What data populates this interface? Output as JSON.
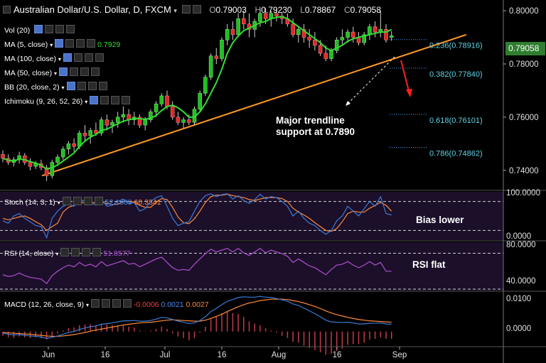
{
  "header": {
    "title": "Australian Dollar/U.S. Dollar, D, FXCM",
    "open_label": "O",
    "open": "0.79003",
    "high_label": "H",
    "high": "0.79230",
    "low_label": "L",
    "low": "0.78867",
    "close_label": "C",
    "close": "0.79058"
  },
  "indicators": [
    {
      "label": "Vol (20)",
      "value": ""
    },
    {
      "label": "MA (5, close)",
      "value": "0.7929"
    },
    {
      "label": "MA (100, close)",
      "value": ""
    },
    {
      "label": "MA (50, close)",
      "value": ""
    },
    {
      "label": "BB (20, close, 2)",
      "value": ""
    },
    {
      "label": "Ichimoku (9, 26, 52, 26)",
      "value": ""
    }
  ],
  "colors": {
    "up": "#1fbf1f",
    "down": "#e02828",
    "ma5": "#33dd33",
    "trend": "#ff9a1f",
    "fib": "#4aa8ff",
    "fib_text": "#5fd3e6",
    "stoch_k": "#3a7bd5",
    "stoch_d": "#ff8a3a",
    "rsi": "#b04fd0",
    "macd": "#3a7bd5",
    "signal": "#ff8a3a",
    "hist": "#c23a4a",
    "panel": "#1c0f2a"
  },
  "chart_data": {
    "type": "candlestick",
    "symbol": "AUD/USD",
    "timeframe": "D",
    "x_ticks": [
      "Jun",
      "16",
      "Jul",
      "16",
      "Aug",
      "16",
      "Sep"
    ],
    "ylim": [
      0.733,
      0.8035
    ],
    "y_ticks": [
      "0.80000",
      "0.78000",
      "0.76000",
      "0.74000"
    ],
    "last_price": "0.79058",
    "ohlc": [
      [
        0.746,
        0.7475,
        0.743,
        0.7445
      ],
      [
        0.7445,
        0.746,
        0.742,
        0.743
      ],
      [
        0.743,
        0.745,
        0.7415,
        0.744
      ],
      [
        0.744,
        0.747,
        0.7425,
        0.7455
      ],
      [
        0.7455,
        0.7465,
        0.742,
        0.743
      ],
      [
        0.743,
        0.7445,
        0.74,
        0.7415
      ],
      [
        0.7415,
        0.7435,
        0.7405,
        0.7425
      ],
      [
        0.7425,
        0.744,
        0.74,
        0.741
      ],
      [
        0.741,
        0.742,
        0.736,
        0.738
      ],
      [
        0.738,
        0.744,
        0.737,
        0.743
      ],
      [
        0.743,
        0.746,
        0.742,
        0.745
      ],
      [
        0.745,
        0.749,
        0.744,
        0.748
      ],
      [
        0.748,
        0.751,
        0.746,
        0.75
      ],
      [
        0.75,
        0.752,
        0.747,
        0.749
      ],
      [
        0.749,
        0.755,
        0.748,
        0.754
      ],
      [
        0.754,
        0.757,
        0.751,
        0.753
      ],
      [
        0.753,
        0.756,
        0.75,
        0.755
      ],
      [
        0.755,
        0.758,
        0.753,
        0.754
      ],
      [
        0.754,
        0.76,
        0.753,
        0.759
      ],
      [
        0.759,
        0.761,
        0.755,
        0.757
      ],
      [
        0.757,
        0.759,
        0.754,
        0.758
      ],
      [
        0.758,
        0.762,
        0.756,
        0.76
      ],
      [
        0.76,
        0.764,
        0.758,
        0.761
      ],
      [
        0.761,
        0.763,
        0.757,
        0.759
      ],
      [
        0.759,
        0.762,
        0.757,
        0.76
      ],
      [
        0.76,
        0.761,
        0.756,
        0.757
      ],
      [
        0.757,
        0.76,
        0.755,
        0.759
      ],
      [
        0.759,
        0.763,
        0.758,
        0.762
      ],
      [
        0.762,
        0.766,
        0.76,
        0.765
      ],
      [
        0.765,
        0.769,
        0.764,
        0.768
      ],
      [
        0.768,
        0.77,
        0.763,
        0.764
      ],
      [
        0.764,
        0.766,
        0.759,
        0.76
      ],
      [
        0.76,
        0.762,
        0.757,
        0.758
      ],
      [
        0.758,
        0.76,
        0.756,
        0.759
      ],
      [
        0.759,
        0.761,
        0.757,
        0.758
      ],
      [
        0.758,
        0.764,
        0.757,
        0.763
      ],
      [
        0.763,
        0.77,
        0.762,
        0.769
      ],
      [
        0.769,
        0.776,
        0.768,
        0.775
      ],
      [
        0.775,
        0.784,
        0.774,
        0.783
      ],
      [
        0.783,
        0.786,
        0.78,
        0.782
      ],
      [
        0.782,
        0.79,
        0.781,
        0.789
      ],
      [
        0.789,
        0.795,
        0.787,
        0.793
      ],
      [
        0.793,
        0.796,
        0.789,
        0.791
      ],
      [
        0.791,
        0.799,
        0.79,
        0.797
      ],
      [
        0.797,
        0.8,
        0.793,
        0.795
      ],
      [
        0.795,
        0.799,
        0.79,
        0.793
      ],
      [
        0.793,
        0.797,
        0.79,
        0.796
      ],
      [
        0.796,
        0.801,
        0.794,
        0.799
      ],
      [
        0.799,
        0.801,
        0.795,
        0.797
      ],
      [
        0.797,
        0.8,
        0.794,
        0.799
      ],
      [
        0.799,
        0.8,
        0.796,
        0.798
      ],
      [
        0.798,
        0.7995,
        0.795,
        0.797
      ],
      [
        0.797,
        0.799,
        0.794,
        0.795
      ],
      [
        0.795,
        0.797,
        0.79,
        0.791
      ],
      [
        0.791,
        0.794,
        0.788,
        0.793
      ],
      [
        0.793,
        0.795,
        0.788,
        0.79
      ],
      [
        0.79,
        0.793,
        0.786,
        0.789
      ],
      [
        0.789,
        0.792,
        0.785,
        0.787
      ],
      [
        0.787,
        0.789,
        0.783,
        0.784
      ],
      [
        0.784,
        0.787,
        0.781,
        0.782
      ],
      [
        0.782,
        0.786,
        0.781,
        0.785
      ],
      [
        0.785,
        0.79,
        0.784,
        0.789
      ],
      [
        0.789,
        0.793,
        0.787,
        0.79
      ],
      [
        0.79,
        0.793,
        0.788,
        0.792
      ],
      [
        0.792,
        0.794,
        0.788,
        0.79
      ],
      [
        0.79,
        0.792,
        0.787,
        0.788
      ],
      [
        0.788,
        0.792,
        0.787,
        0.791
      ],
      [
        0.791,
        0.795,
        0.789,
        0.794
      ],
      [
        0.794,
        0.796,
        0.79,
        0.792
      ],
      [
        0.792,
        0.8,
        0.79,
        0.793
      ],
      [
        0.793,
        0.795,
        0.788,
        0.789
      ],
      [
        0.79,
        0.7923,
        0.7887,
        0.7906
      ]
    ],
    "ma5": [
      0.7445,
      0.7438,
      0.7435,
      0.7442,
      0.744,
      0.7433,
      0.7427,
      0.7419,
      0.7405,
      0.741,
      0.742,
      0.7435,
      0.745,
      0.7465,
      0.749,
      0.751,
      0.7525,
      0.7535,
      0.755,
      0.7555,
      0.7565,
      0.7575,
      0.7585,
      0.759,
      0.7595,
      0.7594,
      0.7592,
      0.7596,
      0.7606,
      0.7625,
      0.764,
      0.7645,
      0.7635,
      0.762,
      0.76,
      0.76,
      0.762,
      0.765,
      0.769,
      0.773,
      0.778,
      0.784,
      0.788,
      0.7905,
      0.7925,
      0.7935,
      0.7945,
      0.7955,
      0.796,
      0.797,
      0.7975,
      0.7978,
      0.797,
      0.7955,
      0.794,
      0.7925,
      0.791,
      0.7895,
      0.788,
      0.786,
      0.785,
      0.786,
      0.787,
      0.7885,
      0.7895,
      0.79,
      0.7905,
      0.791,
      0.7915,
      0.792,
      0.792,
      0.7929
    ],
    "trendline": {
      "from": [
        0,
        0.738
      ],
      "to": [
        84,
        0.791
      ],
      "label": "Major trendline support at 0.7890"
    },
    "fib_levels": [
      {
        "label": "0.236(0.78916)",
        "value": 0.78916
      },
      {
        "label": "0.382(0.77840)",
        "value": 0.7784
      },
      {
        "label": "0.618(0.76101)",
        "value": 0.76101
      },
      {
        "label": "0.786(0.74862)",
        "value": 0.74862
      }
    ],
    "stoch": {
      "label": "Stoch (14, 3, 1)",
      "k_value": "52.1809",
      "d_value": "60.3341",
      "ylim": [
        0,
        100
      ],
      "y_ticks": [
        "100.0000",
        "0.0000"
      ],
      "bands": [
        80,
        20
      ],
      "k": [
        40,
        35,
        50,
        55,
        45,
        38,
        30,
        28,
        5,
        45,
        60,
        70,
        75,
        70,
        85,
        80,
        78,
        72,
        85,
        70,
        72,
        80,
        85,
        75,
        78,
        60,
        65,
        80,
        88,
        92,
        70,
        45,
        30,
        35,
        38,
        60,
        80,
        92,
        96,
        90,
        94,
        96,
        85,
        92,
        82,
        76,
        84,
        95,
        85,
        90,
        88,
        80,
        70,
        50,
        60,
        45,
        35,
        30,
        20,
        12,
        20,
        40,
        50,
        70,
        60,
        50,
        65,
        80,
        70,
        90,
        55,
        52
      ],
      "d": [
        45,
        42,
        45,
        48,
        50,
        45,
        38,
        32,
        20,
        28,
        35,
        58,
        68,
        72,
        76,
        78,
        80,
        76,
        78,
        76,
        74,
        74,
        80,
        80,
        79,
        72,
        68,
        68,
        78,
        86,
        84,
        68,
        48,
        36,
        34,
        44,
        60,
        78,
        90,
        93,
        93,
        95,
        92,
        90,
        88,
        84,
        82,
        85,
        88,
        88,
        88,
        86,
        80,
        66,
        58,
        52,
        45,
        36,
        28,
        20,
        18,
        24,
        38,
        55,
        60,
        58,
        58,
        66,
        72,
        78,
        72,
        60
      ]
    },
    "rsi": {
      "label": "RSI (14, close)",
      "value": "51.8577",
      "ylim": [
        30,
        85
      ],
      "y_ticks": [
        "80.0000",
        "40.0000"
      ],
      "bands": [
        70,
        30
      ],
      "values": [
        48,
        46,
        47,
        50,
        47,
        45,
        44,
        43,
        38,
        47,
        52,
        56,
        59,
        57,
        62,
        58,
        60,
        57,
        63,
        58,
        60,
        62,
        64,
        60,
        61,
        57,
        60,
        63,
        66,
        68,
        62,
        56,
        53,
        54,
        53,
        60,
        66,
        72,
        77,
        74,
        76,
        78,
        74,
        78,
        73,
        70,
        74,
        78,
        73,
        76,
        74,
        72,
        69,
        62,
        66,
        62,
        58,
        56,
        52,
        48,
        54,
        59,
        60,
        63,
        59,
        56,
        59,
        63,
        59,
        62,
        52,
        52
      ]
    },
    "macd": {
      "label": "MACD (12, 26, close, 9)",
      "hist_value": "-0.0006",
      "macd_value": "0.0021",
      "signal_value": "0.0027",
      "ylim": [
        -0.004,
        0.0113
      ],
      "y_ticks": [
        "0.0100",
        "0.0000"
      ],
      "macd": [
        -0.0005,
        -0.0008,
        -0.001,
        -0.0009,
        -0.0011,
        -0.0013,
        -0.0014,
        -0.0016,
        -0.002,
        -0.0017,
        -0.0013,
        -0.0008,
        -0.0003,
        0.0,
        0.0006,
        0.001,
        0.0014,
        0.0016,
        0.0021,
        0.0023,
        0.0025,
        0.0028,
        0.0031,
        0.0031,
        0.0032,
        0.003,
        0.003,
        0.0032,
        0.0036,
        0.0041,
        0.004,
        0.0035,
        0.003,
        0.0027,
        0.0023,
        0.0025,
        0.0032,
        0.0043,
        0.0058,
        0.0067,
        0.0078,
        0.0088,
        0.0093,
        0.0099,
        0.0101,
        0.01,
        0.01,
        0.0102,
        0.01,
        0.0099,
        0.0096,
        0.0092,
        0.0088,
        0.008,
        0.0076,
        0.0068,
        0.006,
        0.0052,
        0.0043,
        0.0033,
        0.0028,
        0.0027,
        0.0026,
        0.0027,
        0.0025,
        0.0022,
        0.0022,
        0.0024,
        0.0024,
        0.0025,
        0.0022,
        0.0021
      ],
      "signal": [
        -0.0003,
        -0.0004,
        -0.0005,
        -0.0006,
        -0.0007,
        -0.0008,
        -0.001,
        -0.0011,
        -0.0013,
        -0.0014,
        -0.0014,
        -0.0013,
        -0.0011,
        -0.0009,
        -0.0006,
        -0.0003,
        0.0001,
        0.0004,
        0.0007,
        0.001,
        0.0013,
        0.0016,
        0.0019,
        0.0021,
        0.0023,
        0.0025,
        0.0026,
        0.0027,
        0.0029,
        0.0031,
        0.0033,
        0.0034,
        0.0033,
        0.0032,
        0.0031,
        0.003,
        0.003,
        0.0033,
        0.0038,
        0.0044,
        0.005,
        0.0058,
        0.0065,
        0.0072,
        0.0078,
        0.0083,
        0.0086,
        0.009,
        0.0092,
        0.0094,
        0.0094,
        0.0094,
        0.0093,
        0.009,
        0.0087,
        0.0083,
        0.0078,
        0.0073,
        0.0067,
        0.006,
        0.0054,
        0.0049,
        0.0045,
        0.0041,
        0.0038,
        0.0035,
        0.0033,
        0.0031,
        0.003,
        0.0029,
        0.0028,
        0.0027
      ]
    }
  },
  "annotations": {
    "trend_label_line1": "Major trendline",
    "trend_label_line2": "support at 0.7890",
    "stoch_note": "Bias lower",
    "rsi_note": "RSI flat"
  }
}
